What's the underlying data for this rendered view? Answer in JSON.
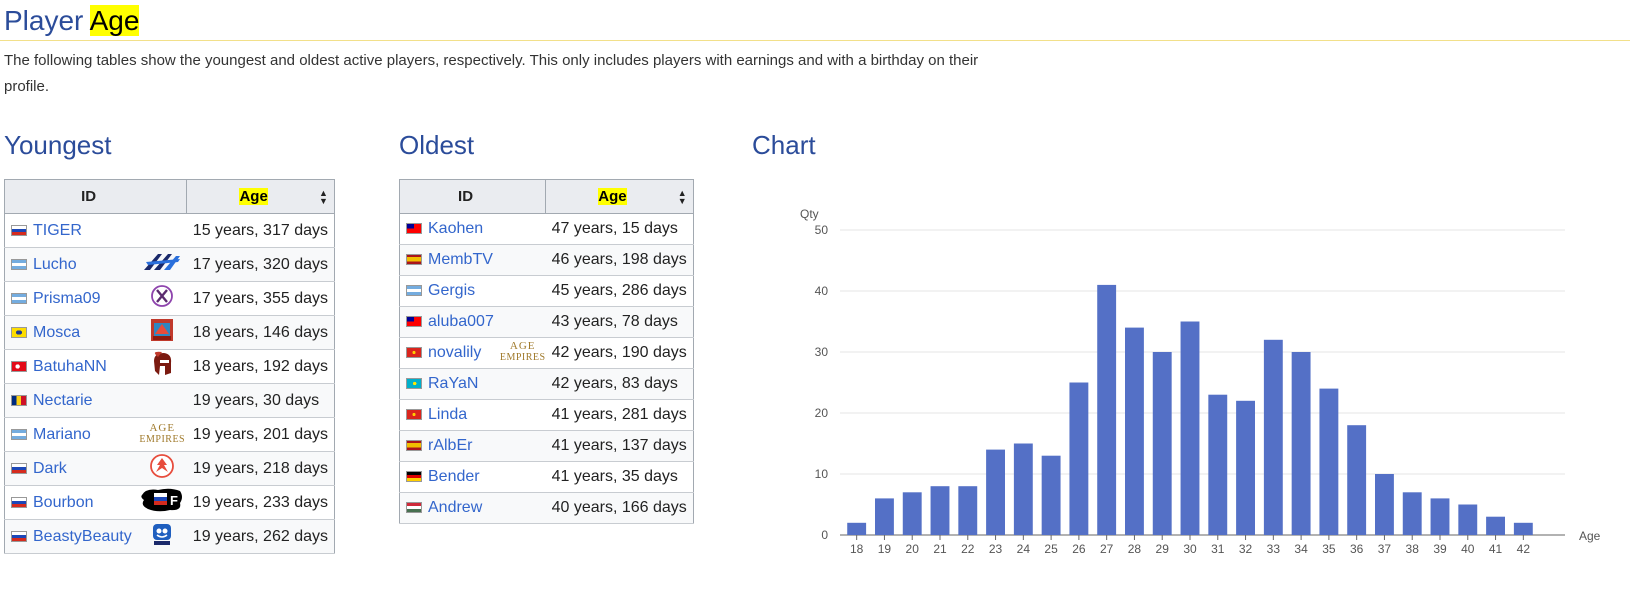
{
  "header": {
    "title_pre": "Player",
    "title_highlight": "Age",
    "intro": "The following tables show the youngest and oldest active players, respectively. This only includes players with earnings and with a birthday on their profile."
  },
  "youngest": {
    "title": "Youngest",
    "col_id": "ID",
    "col_age": "Age",
    "rows": [
      {
        "name": "TIGER",
        "flag": "russia",
        "team": "",
        "age": "15 years, 317 days"
      },
      {
        "name": "Lucho",
        "flag": "argentina",
        "team": "blue-wings-logo",
        "age": "17 years, 320 days"
      },
      {
        "name": "Prisma09",
        "flag": "argentina",
        "team": "x-circle-logo",
        "age": "17 years, 355 days"
      },
      {
        "name": "Mosca",
        "flag": "brazil",
        "team": "red-crest-logo",
        "age": "18 years, 146 days"
      },
      {
        "name": "BatuhaNN",
        "flag": "turkey",
        "team": "spartan-helmet-logo",
        "age": "18 years, 192 days"
      },
      {
        "name": "Nectarie",
        "flag": "romania",
        "team": "",
        "age": "19 years, 30 days"
      },
      {
        "name": "Mariano",
        "flag": "argentina",
        "team": "age-of-empires-logo",
        "age": "19 years, 201 days"
      },
      {
        "name": "Dark",
        "flag": "russia",
        "team": "phoenix-circle-logo",
        "age": "19 years, 218 days"
      },
      {
        "name": "Bourbon",
        "flag": "russia",
        "team": "flag-splash-logo",
        "age": "19 years, 233 days"
      },
      {
        "name": "BeastyBeauty",
        "flag": "russia",
        "team": "mascot-logo",
        "age": "19 years, 262 days"
      }
    ]
  },
  "oldest": {
    "title": "Oldest",
    "col_id": "ID",
    "col_age": "Age",
    "rows": [
      {
        "name": "Kaohen",
        "flag": "taiwan",
        "team": "",
        "age": "47 years, 15 days"
      },
      {
        "name": "MembTV",
        "flag": "spain",
        "team": "",
        "age": "46 years, 198 days"
      },
      {
        "name": "Gergis",
        "flag": "argentina",
        "team": "",
        "age": "45 years, 286 days"
      },
      {
        "name": "aluba007",
        "flag": "taiwan",
        "team": "",
        "age": "43 years, 78 days"
      },
      {
        "name": "novalily",
        "flag": "vietnam",
        "team": "age-of-empires-logo",
        "age": "42 years, 190 days"
      },
      {
        "name": "RaYaN",
        "flag": "kazakhstan",
        "team": "",
        "age": "42 years, 83 days"
      },
      {
        "name": "Linda",
        "flag": "vietnam",
        "team": "",
        "age": "41 years, 281 days"
      },
      {
        "name": "rAlbEr",
        "flag": "spain",
        "team": "",
        "age": "41 years, 137 days"
      },
      {
        "name": "Bender",
        "flag": "germany",
        "team": "",
        "age": "41 years, 35 days"
      },
      {
        "name": "Andrew",
        "flag": "hungary",
        "team": "",
        "age": "40 years, 166 days"
      }
    ]
  },
  "logo_text": {
    "age_of_empires_line1": "AGE",
    "age_of_empires_line2": "EMPIRES",
    "flag_splash": "F"
  },
  "chart_section": {
    "title": "Chart"
  },
  "chart_data": {
    "type": "bar",
    "title": "",
    "xlabel": "Age",
    "ylabel": "Qty",
    "categories": [
      "18",
      "19",
      "20",
      "21",
      "22",
      "23",
      "24",
      "25",
      "26",
      "27",
      "28",
      "29",
      "30",
      "31",
      "32",
      "33",
      "34",
      "35",
      "36",
      "37",
      "38",
      "39",
      "40",
      "41",
      "42"
    ],
    "values": [
      2,
      6,
      7,
      8,
      8,
      14,
      15,
      13,
      25,
      41,
      34,
      30,
      35,
      23,
      22,
      32,
      30,
      24,
      18,
      10,
      7,
      6,
      5,
      3,
      2
    ],
    "ylim": [
      0,
      50
    ],
    "yticks": [
      0,
      10,
      20,
      30,
      40,
      50
    ],
    "grid": true,
    "bar_color": "#5470c6"
  },
  "colors": {
    "link": "#3366cc",
    "heading": "#2b4c9a",
    "highlight": "#ffff00"
  }
}
